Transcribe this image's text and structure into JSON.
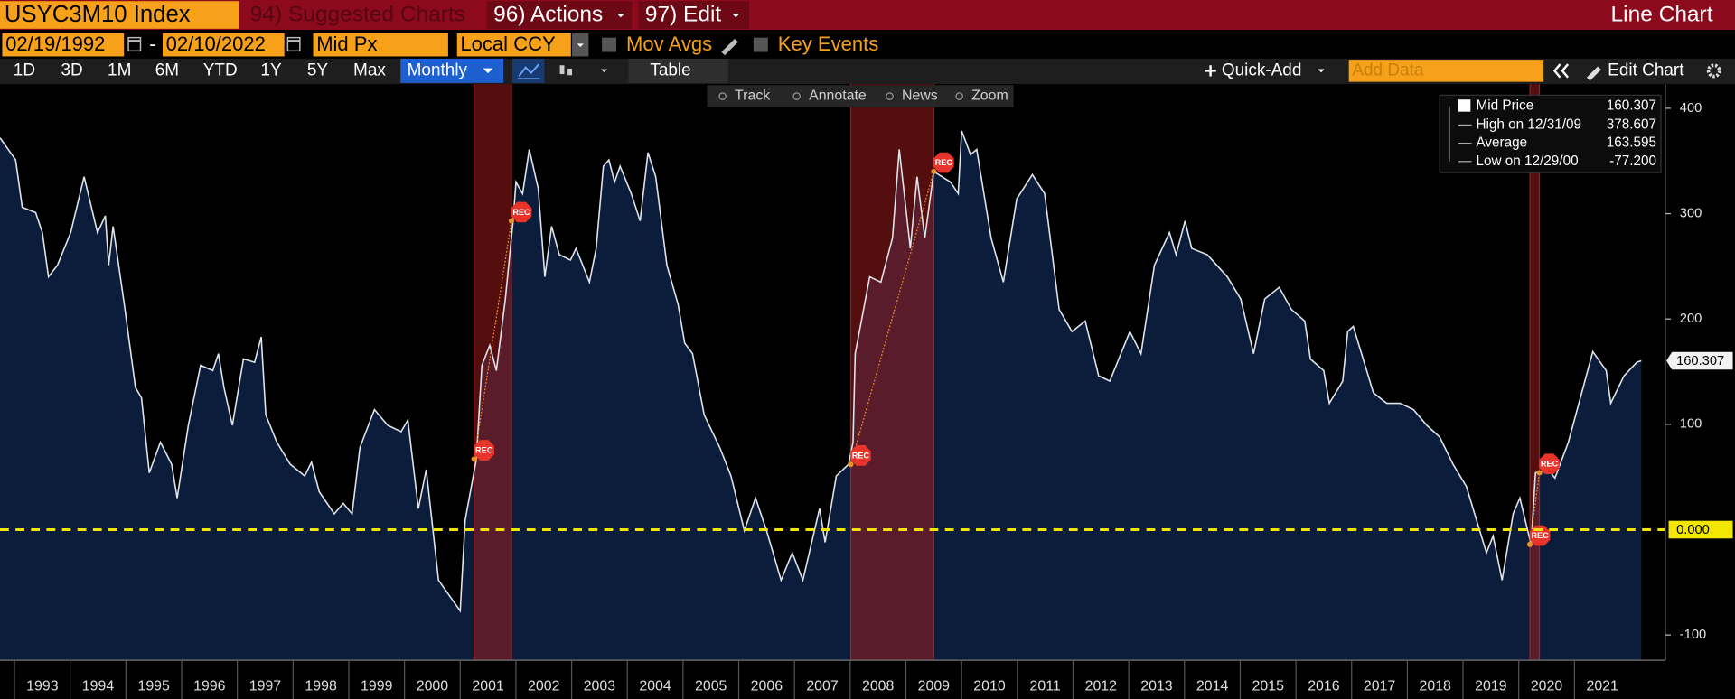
{
  "header": {
    "ticker": "USYC3M10 Index",
    "suggested": "94) Suggested Charts",
    "actions": "96) Actions",
    "edit": "97) Edit",
    "chart_type": "Line Chart"
  },
  "settings": {
    "start_date": "02/19/1992",
    "date_separator": "-",
    "end_date": "02/10/2022",
    "field": "Mid Px",
    "currency": "Local CCY",
    "mov_avgs": "Mov Avgs",
    "key_events": "Key Events"
  },
  "toolbar": {
    "periods": [
      "1D",
      "3D",
      "1M",
      "6M",
      "YTD",
      "1Y",
      "5Y",
      "Max"
    ],
    "frequency": "Monthly",
    "table": "Table",
    "quick_add": "Quick-Add",
    "add_data": "Add Data",
    "edit_chart": "Edit Chart"
  },
  "chart_tools": [
    "Track",
    "Annotate",
    "News",
    "Zoom"
  ],
  "chart_data": {
    "type": "line",
    "x": [
      1992.74,
      1993.02,
      1993.14,
      1993.38,
      1993.5,
      1993.61,
      1993.77,
      1994.01,
      1994.25,
      1994.49,
      1994.63,
      1994.69,
      1994.77,
      1994.97,
      1995.17,
      1995.28,
      1995.42,
      1995.62,
      1995.82,
      1995.92,
      1996.12,
      1996.34,
      1996.56,
      1996.66,
      1996.76,
      1996.91,
      1997.11,
      1997.31,
      1997.43,
      1997.51,
      1997.71,
      1997.95,
      1998.21,
      1998.33,
      1998.47,
      1998.74,
      1998.9,
      1999.06,
      1999.2,
      1999.46,
      1999.7,
      1999.94,
      2000.06,
      2000.25,
      2000.39,
      2000.61,
      2000.89,
      2001.0,
      2001.09,
      2001.29,
      2001.39,
      2001.53,
      2001.65,
      2001.81,
      2001.95,
      2002.0,
      2002.12,
      2002.24,
      2002.4,
      2002.52,
      2002.64,
      2002.78,
      2002.98,
      2003.08,
      2003.32,
      2003.44,
      2003.57,
      2003.67,
      2003.77,
      2003.87,
      2004.07,
      2004.23,
      2004.37,
      2004.51,
      2004.71,
      2004.91,
      2005.03,
      2005.17,
      2005.38,
      2005.66,
      2005.86,
      2006.1,
      2006.3,
      2006.5,
      2006.76,
      2006.96,
      2007.15,
      2007.45,
      2007.55,
      2007.75,
      2007.97,
      2008.05,
      2008.09,
      2008.35,
      2008.55,
      2008.76,
      2008.88,
      2009.08,
      2009.2,
      2009.34,
      2009.5,
      2009.8,
      2009.94,
      2010.0,
      2010.16,
      2010.27,
      2010.53,
      2010.75,
      2010.99,
      2011.27,
      2011.49,
      2011.75,
      2011.98,
      2012.22,
      2012.46,
      2012.66,
      2013.02,
      2013.22,
      2013.46,
      2013.73,
      2013.85,
      2014.01,
      2014.13,
      2014.41,
      2014.77,
      2015.01,
      2015.24,
      2015.44,
      2015.7,
      2015.92,
      2016.16,
      2016.26,
      2016.5,
      2016.6,
      2016.84,
      2016.93,
      2017.03,
      2017.39,
      2017.63,
      2017.87,
      2018.11,
      2018.35,
      2018.58,
      2018.82,
      2019.06,
      2019.3,
      2019.42,
      2019.54,
      2019.7,
      2019.9,
      2020.02,
      2020.22,
      2020.3,
      2020.53,
      2020.65,
      2020.89,
      2021.13,
      2021.33,
      2021.57,
      2021.65,
      2021.89,
      2022.12,
      2022.2
    ],
    "series": [
      {
        "name": "Mid Price",
        "color": "#dfe3ea",
        "fill": "#0b1d3a",
        "values": [
          372,
          351,
          306,
          301,
          282,
          240,
          251,
          282,
          335,
          282,
          298,
          251,
          288,
          214,
          135,
          125,
          54,
          83,
          62,
          30,
          99,
          156,
          151,
          167,
          135,
          99,
          162,
          159,
          183,
          109,
          83,
          62,
          51,
          64,
          36,
          15,
          25,
          15,
          78,
          114,
          99,
          93,
          104,
          20,
          57,
          -48,
          -69,
          -77.2,
          9,
          67,
          156,
          175,
          151,
          219,
          293,
          330,
          319,
          361,
          324,
          240,
          288,
          261,
          256,
          267,
          235,
          267,
          345,
          351,
          330,
          345,
          319,
          293,
          358,
          335,
          251,
          214,
          177,
          167,
          109,
          78,
          51,
          -1,
          30,
          -1,
          -48,
          -22,
          -48,
          20,
          -12,
          51,
          62,
          83,
          167,
          240,
          235,
          277,
          361,
          267,
          335,
          277,
          340,
          330,
          319,
          378.607,
          356,
          361,
          277,
          235,
          314,
          337,
          319,
          209,
          188,
          198,
          146,
          141,
          188,
          167,
          251,
          282,
          261,
          293,
          267,
          261,
          240,
          219,
          167,
          219,
          230,
          209,
          198,
          162,
          151,
          120,
          141,
          188,
          193,
          130,
          120,
          120,
          114,
          99,
          88,
          62,
          41,
          -1,
          -22,
          -6,
          -48,
          15,
          30,
          -14,
          54,
          57,
          49,
          83,
          130,
          169,
          151,
          120,
          146,
          159,
          160.307
        ]
      }
    ],
    "xlim": [
      1992.74,
      2022.63
    ],
    "ylim": [
      -124,
      423
    ],
    "xticks": [
      1993,
      1994,
      1995,
      1996,
      1997,
      1998,
      1999,
      2000,
      2001,
      2002,
      2003,
      2004,
      2005,
      2006,
      2007,
      2008,
      2009,
      2010,
      2011,
      2012,
      2013,
      2014,
      2015,
      2016,
      2017,
      2018,
      2019,
      2020,
      2021
    ],
    "yticks": [
      -100,
      100,
      200,
      300,
      400
    ],
    "reference_line": {
      "value": 0,
      "label": "0.000",
      "color": "#f2e600"
    },
    "recessions": [
      {
        "start": 2001.25,
        "end": 2001.92
      },
      {
        "start": 2008.01,
        "end": 2009.5
      },
      {
        "start": 2020.2,
        "end": 2020.37
      }
    ],
    "recession_label": "REC",
    "stats": [
      {
        "label": "High on 12/31/09",
        "value": 378.607
      },
      {
        "label": "Average",
        "value": 163.595
      },
      {
        "label": "Low on 12/29/00",
        "value": -77.2,
        "value_label": "-77.200"
      }
    ]
  }
}
